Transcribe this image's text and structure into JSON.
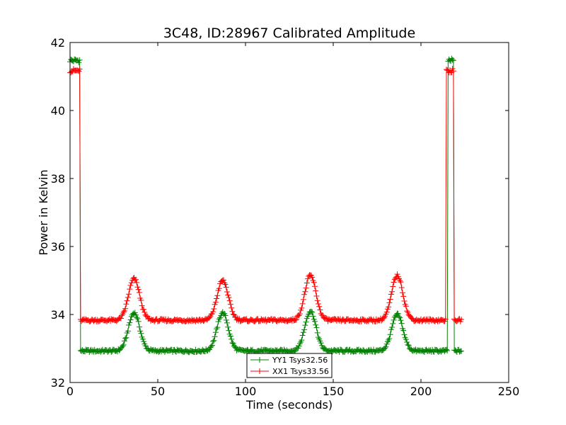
{
  "chart_data": {
    "type": "line",
    "title": "3C48, ID:28967 Calibrated Amplitude",
    "xlabel": "Time (seconds)",
    "ylabel": "Power in Kelvin",
    "xlim": [
      0,
      250
    ],
    "ylim": [
      32,
      42
    ],
    "xticks": [
      "0",
      "50",
      "100",
      "150",
      "200",
      "250"
    ],
    "yticks": [
      "32",
      "34",
      "36",
      "38",
      "40",
      "42"
    ],
    "grid": false,
    "legend_position": "bottom-center",
    "series": [
      {
        "name": "YY1 Tsys32.56",
        "color": "#008000",
        "marker": "+",
        "baseline": 32.93,
        "high_value": 41.47,
        "peaks": [
          {
            "t": 36.5,
            "value": 34.05
          },
          {
            "t": 87,
            "value": 34.05
          },
          {
            "t": 137,
            "value": 34.1
          },
          {
            "t": 186.5,
            "value": 34.0
          }
        ],
        "peak_width": 3.2,
        "x_range": [
          0,
          223
        ],
        "start_high_until": 5.5,
        "end_high": [
          215.5,
          218.5
        ]
      },
      {
        "name": "XX1 Tsys33.56",
        "color": "#ff0000",
        "marker": "+",
        "baseline": 33.83,
        "high_value": 41.17,
        "peaks": [
          {
            "t": 36.5,
            "value": 35.05
          },
          {
            "t": 87,
            "value": 35.0
          },
          {
            "t": 137,
            "value": 35.15
          },
          {
            "t": 186.5,
            "value": 35.15
          }
        ],
        "peak_width": 3.2,
        "x_range": [
          0,
          223
        ],
        "start_high_until": 5.5,
        "end_high": [
          214.5,
          218.5
        ]
      }
    ]
  }
}
